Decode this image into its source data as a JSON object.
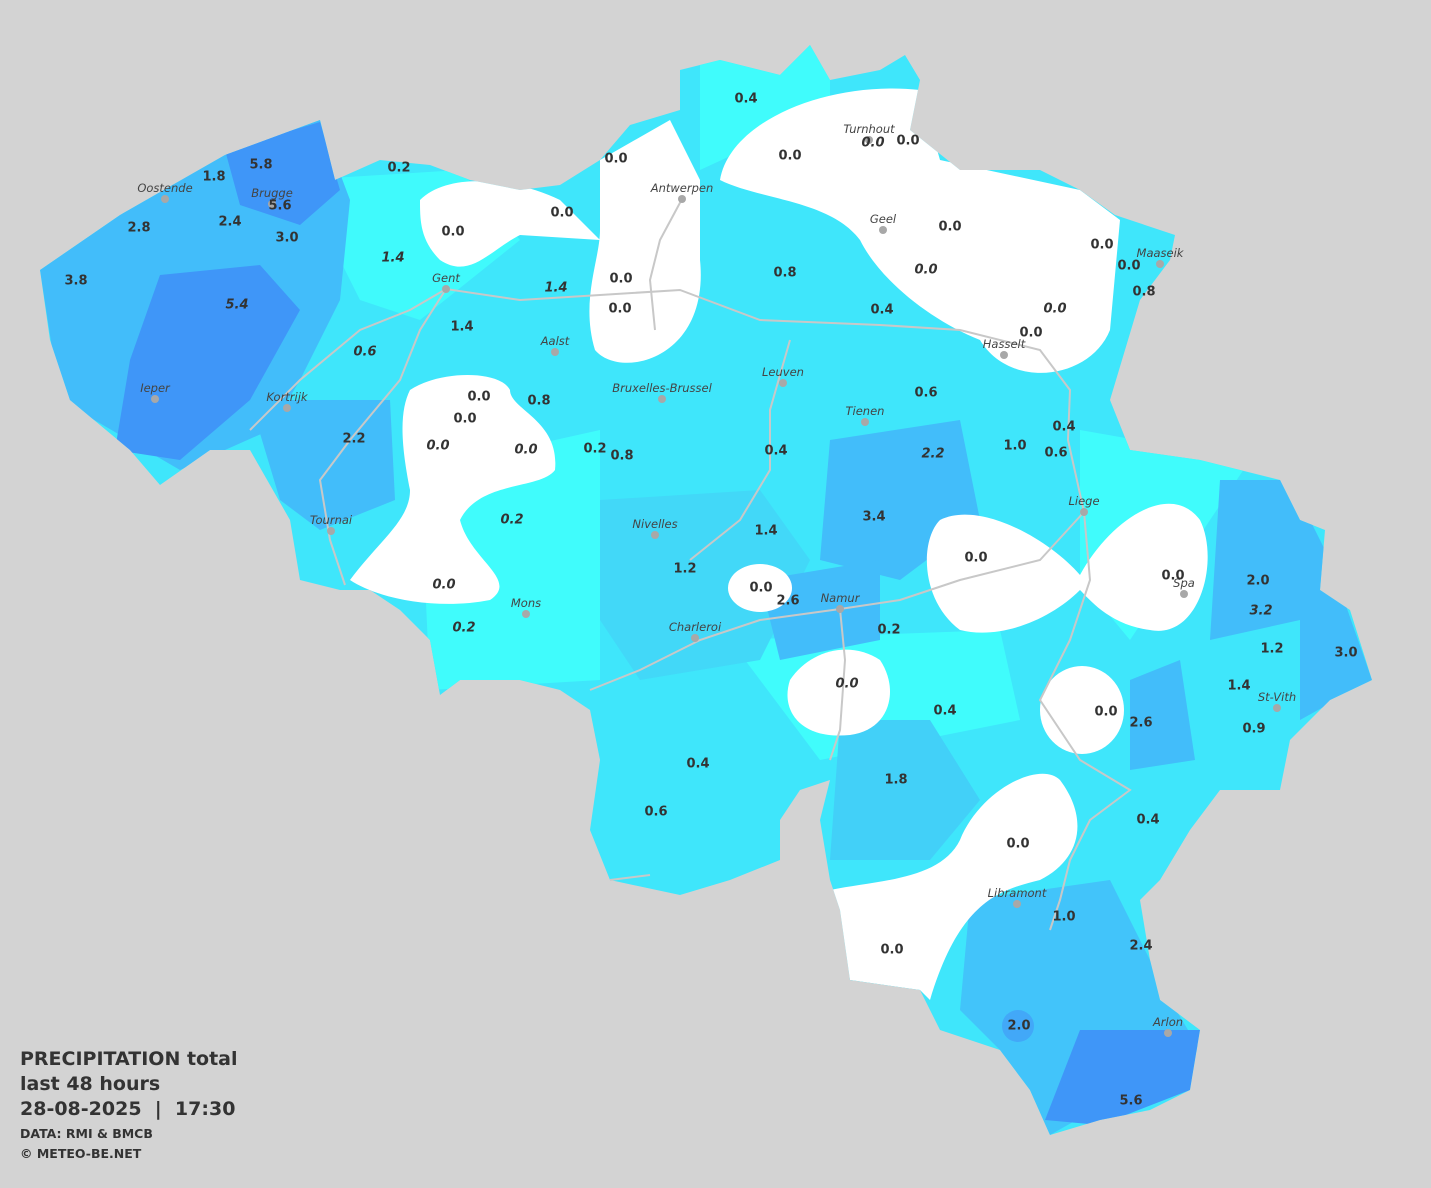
{
  "map": {
    "title": "PRECIPITATION total",
    "subtitle": "last 48 hours",
    "timestamp": "28-08-2025  |  17:30",
    "source": "DATA: RMI & BMCB",
    "credit": "© METEO-BE.NET",
    "cities": [
      "Oostende",
      "Brugge",
      "Antwerpen",
      "Turnhout",
      "Geel",
      "Maaseik",
      "Gent",
      "Aalst",
      "Hasselt",
      "Leuven",
      "Bruxelles-Brussel",
      "Ieper",
      "Kortrijk",
      "Tienen",
      "Liege",
      "Nivelles",
      "Tournai",
      "Spa",
      "Namur",
      "Mons",
      "Charleroi",
      "St-Vith",
      "Libramont",
      "Arlon"
    ],
    "readings": [
      {
        "label": "0.4",
        "italic": false
      },
      {
        "label": "0.0",
        "italic": false
      },
      {
        "label": "0.0",
        "italic": false
      },
      {
        "label": "0.0",
        "italic": true
      },
      {
        "label": "0.0",
        "italic": false
      },
      {
        "label": "0.2",
        "italic": false
      },
      {
        "label": "1.8",
        "italic": false
      },
      {
        "label": "5.8",
        "italic": false
      },
      {
        "label": "5.6",
        "italic": false
      },
      {
        "label": "2.8",
        "italic": false
      },
      {
        "label": "2.4",
        "italic": false
      },
      {
        "label": "3.0",
        "italic": false
      },
      {
        "label": "0.0",
        "italic": false
      },
      {
        "label": "0.0",
        "italic": false
      },
      {
        "label": "0.0",
        "italic": false
      },
      {
        "label": "0.0",
        "italic": false
      },
      {
        "label": "0.0",
        "italic": false
      },
      {
        "label": "3.8",
        "italic": false
      },
      {
        "label": "5.4",
        "italic": true
      },
      {
        "label": "1.4",
        "italic": true
      },
      {
        "label": "0.0",
        "italic": false
      },
      {
        "label": "0.8",
        "italic": false
      },
      {
        "label": "0.0",
        "italic": true
      },
      {
        "label": "0.8",
        "italic": false
      },
      {
        "label": "1.4",
        "italic": true
      },
      {
        "label": "0.0",
        "italic": false
      },
      {
        "label": "0.4",
        "italic": false
      },
      {
        "label": "0.0",
        "italic": true
      },
      {
        "label": "0.0",
        "italic": false
      },
      {
        "label": "1.4",
        "italic": false
      },
      {
        "label": "0.6",
        "italic": true
      },
      {
        "label": "0.0",
        "italic": false
      },
      {
        "label": "0.8",
        "italic": false
      },
      {
        "label": "0.0",
        "italic": false
      },
      {
        "label": "0.6",
        "italic": false
      },
      {
        "label": "0.4",
        "italic": false
      },
      {
        "label": "2.2",
        "italic": false
      },
      {
        "label": "0.0",
        "italic": true
      },
      {
        "label": "0.0",
        "italic": true
      },
      {
        "label": "0.2",
        "italic": false
      },
      {
        "label": "0.8",
        "italic": false
      },
      {
        "label": "0.4",
        "italic": false
      },
      {
        "label": "2.2",
        "italic": true
      },
      {
        "label": "1.0",
        "italic": false
      },
      {
        "label": "0.6",
        "italic": false
      },
      {
        "label": "0.2",
        "italic": true
      },
      {
        "label": "1.4",
        "italic": false
      },
      {
        "label": "3.4",
        "italic": false
      },
      {
        "label": "0.0",
        "italic": false
      },
      {
        "label": "0.0",
        "italic": false
      },
      {
        "label": "2.0",
        "italic": false
      },
      {
        "label": "1.2",
        "italic": false
      },
      {
        "label": "0.0",
        "italic": false
      },
      {
        "label": "2.6",
        "italic": false
      },
      {
        "label": "0.0",
        "italic": true
      },
      {
        "label": "3.2",
        "italic": true
      },
      {
        "label": "0.2",
        "italic": true
      },
      {
        "label": "0.2",
        "italic": false
      },
      {
        "label": "1.2",
        "italic": false
      },
      {
        "label": "3.0",
        "italic": false
      },
      {
        "label": "0.0",
        "italic": true
      },
      {
        "label": "1.4",
        "italic": false
      },
      {
        "label": "0.4",
        "italic": false
      },
      {
        "label": "0.0",
        "italic": false
      },
      {
        "label": "2.6",
        "italic": false
      },
      {
        "label": "0.9",
        "italic": false
      },
      {
        "label": "0.4",
        "italic": false
      },
      {
        "label": "1.8",
        "italic": false
      },
      {
        "label": "0.6",
        "italic": false
      },
      {
        "label": "0.4",
        "italic": false
      },
      {
        "label": "0.0",
        "italic": false
      },
      {
        "label": "1.0",
        "italic": false
      },
      {
        "label": "0.0",
        "italic": false
      },
      {
        "label": "2.4",
        "italic": false
      },
      {
        "label": "2.0",
        "italic": false
      },
      {
        "label": "5.6",
        "italic": false
      }
    ]
  }
}
